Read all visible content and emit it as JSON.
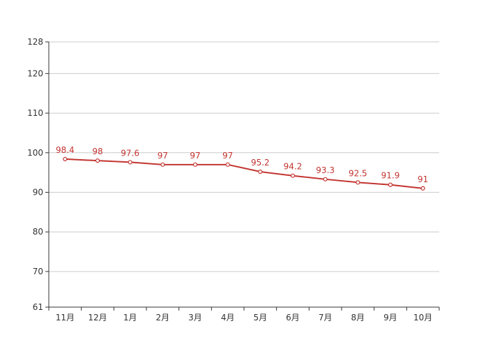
{
  "chart_data": {
    "type": "line",
    "title": "",
    "xlabel": "",
    "ylabel": "",
    "categories": [
      "11月",
      "12月",
      "1月",
      "2月",
      "3月",
      "4月",
      "5月",
      "6月",
      "7月",
      "8月",
      "9月",
      "10月"
    ],
    "series": [
      {
        "values": [
          98.4,
          98,
          97.6,
          97,
          97,
          97,
          95.2,
          94.2,
          93.3,
          92.5,
          91.9,
          91
        ],
        "color": "#c23531",
        "data_labels": [
          "98.4",
          "98",
          "97.6",
          "97",
          "97",
          "97",
          "95.2",
          "94.2",
          "93.3",
          "92.5",
          "91.9",
          "91"
        ]
      }
    ],
    "ylim": [
      61,
      128
    ],
    "y_ticks": [
      61,
      70,
      80,
      90,
      100,
      110,
      120,
      128
    ],
    "y_tick_labels": [
      "61",
      "70",
      "80",
      "90",
      "100",
      "110",
      "120",
      "128"
    ],
    "grid": true,
    "legend": "none",
    "colors": {
      "line": "#c23531",
      "grid": "#cccccc",
      "axis": "#333333",
      "label": "#333333",
      "data_label": "#c23531"
    }
  }
}
